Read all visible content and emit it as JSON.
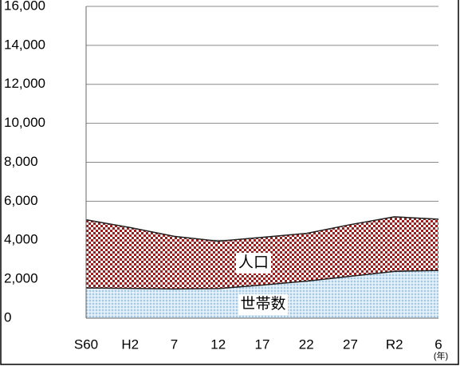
{
  "chart_data": {
    "type": "area",
    "categories": [
      "S60",
      "H2",
      "7",
      "12",
      "17",
      "22",
      "27",
      "R2",
      "6"
    ],
    "series": [
      {
        "name": "人口",
        "color": "#9c1c1c",
        "values": [
          5050,
          4650,
          4200,
          3950,
          4150,
          4350,
          4800,
          5200,
          5080
        ]
      },
      {
        "name": "世帯数",
        "color": "#a8cde8",
        "values": [
          1550,
          1530,
          1500,
          1520,
          1700,
          1900,
          2150,
          2400,
          2450
        ]
      }
    ],
    "x_label": "(年)",
    "ylim": [
      0,
      16000
    ],
    "yticks": [
      {
        "value": 0,
        "label": "0"
      },
      {
        "value": 2000,
        "label": "2,000"
      },
      {
        "value": 4000,
        "label": "4,000"
      },
      {
        "value": 6000,
        "label": "6,000"
      },
      {
        "value": 8000,
        "label": "8,000"
      },
      {
        "value": 10000,
        "label": "10,000"
      },
      {
        "value": 12000,
        "label": "12,000"
      },
      {
        "value": 14000,
        "label": "14,000"
      },
      {
        "value": 16000,
        "label": "16,000"
      }
    ],
    "grid": true
  }
}
